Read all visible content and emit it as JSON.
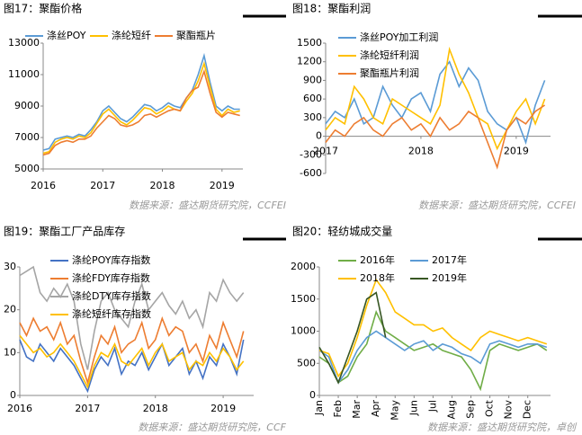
{
  "chart_data": [
    {
      "type": "line",
      "title": "图17：聚酯价格",
      "source": "数据来源：盛达期货研究院，CCFEI",
      "x": [
        2016.0,
        2016.1,
        2016.2,
        2016.3,
        2016.4,
        2016.5,
        2016.6,
        2016.7,
        2016.8,
        2016.9,
        2017.0,
        2017.1,
        2017.2,
        2017.3,
        2017.4,
        2017.5,
        2017.6,
        2017.7,
        2017.8,
        2017.9,
        2018.0,
        2018.1,
        2018.2,
        2018.3,
        2018.4,
        2018.5,
        2018.6,
        2018.7,
        2018.8,
        2018.9,
        2019.0,
        2019.1,
        2019.2,
        2019.3
      ],
      "xlim": [
        2016,
        2019.35
      ],
      "xticks": [
        2016,
        2017,
        2018,
        2019
      ],
      "ylim": [
        5000,
        13000
      ],
      "yticks": [
        5000,
        7000,
        9000,
        11000,
        13000
      ],
      "series": [
        {
          "name": "涤丝POY",
          "color": "#5b9bd5",
          "values": [
            6200,
            6300,
            6900,
            7000,
            7100,
            7000,
            7200,
            7100,
            7500,
            8000,
            8700,
            9000,
            8600,
            8200,
            8000,
            8300,
            8700,
            9100,
            9000,
            8700,
            8900,
            9200,
            9000,
            8900,
            9500,
            10000,
            11000,
            12200,
            10500,
            9000,
            8700,
            9000,
            8800,
            8800
          ]
        },
        {
          "name": "涤纶短纤",
          "color": "#ffc000",
          "values": [
            6000,
            6100,
            6700,
            6900,
            7000,
            6900,
            7100,
            7000,
            7300,
            7900,
            8500,
            8800,
            8400,
            8000,
            7800,
            8100,
            8500,
            8900,
            8800,
            8500,
            8700,
            9000,
            8800,
            8700,
            9300,
            9800,
            10600,
            11700,
            10200,
            8800,
            8400,
            8800,
            8600,
            8700
          ]
        },
        {
          "name": "聚酯瓶片",
          "color": "#ed7d31",
          "values": [
            5900,
            6000,
            6500,
            6700,
            6800,
            6700,
            6900,
            6900,
            7100,
            7600,
            8000,
            8400,
            8200,
            7800,
            7700,
            7800,
            8000,
            8400,
            8500,
            8300,
            8500,
            8700,
            8800,
            8700,
            9500,
            10000,
            10200,
            11200,
            9800,
            8600,
            8300,
            8600,
            8500,
            8400
          ]
        }
      ]
    },
    {
      "type": "line",
      "title": "图18：聚酯利润",
      "source": "数据来源：盛达期货研究院，CCFEI",
      "x": [
        2017.0,
        2017.1,
        2017.2,
        2017.3,
        2017.4,
        2017.5,
        2017.6,
        2017.7,
        2017.8,
        2017.9,
        2018.0,
        2018.1,
        2018.2,
        2018.3,
        2018.4,
        2018.5,
        2018.6,
        2018.7,
        2018.8,
        2018.9,
        2019.0,
        2019.1,
        2019.2,
        2019.3
      ],
      "xlim": [
        2017,
        2019.36
      ],
      "xticks": [
        2017,
        2018,
        2019
      ],
      "ylim": [
        -600,
        1500
      ],
      "yticks": [
        -600,
        -300,
        0,
        300,
        600,
        900,
        1200,
        1500
      ],
      "series": [
        {
          "name": "涤丝POY加工利润",
          "color": "#5b9bd5",
          "values": [
            200,
            400,
            300,
            600,
            200,
            300,
            800,
            500,
            300,
            600,
            700,
            400,
            1000,
            1200,
            800,
            1100,
            900,
            400,
            200,
            100,
            300,
            -100,
            500,
            900
          ]
        },
        {
          "name": "涤纶短纤利润",
          "color": "#ffc000",
          "values": [
            100,
            300,
            200,
            800,
            600,
            300,
            200,
            600,
            500,
            400,
            300,
            200,
            500,
            1400,
            1000,
            700,
            300,
            200,
            -200,
            100,
            400,
            600,
            200,
            600
          ]
        },
        {
          "name": "聚酯瓶片利润",
          "color": "#ed7d31",
          "values": [
            -100,
            100,
            0,
            200,
            300,
            100,
            0,
            200,
            300,
            100,
            200,
            0,
            300,
            100,
            200,
            400,
            300,
            -100,
            -500,
            100,
            300,
            200,
            400,
            500
          ]
        }
      ]
    },
    {
      "type": "line",
      "title": "图19：聚酯工厂产品库存",
      "source": "数据来源：盛达期货研究院，CCF",
      "x": [
        2016.0,
        2016.1,
        2016.2,
        2016.3,
        2016.4,
        2016.5,
        2016.6,
        2016.7,
        2016.8,
        2016.9,
        2017.0,
        2017.1,
        2017.2,
        2017.3,
        2017.4,
        2017.5,
        2017.6,
        2017.7,
        2017.8,
        2017.9,
        2018.0,
        2018.1,
        2018.2,
        2018.3,
        2018.4,
        2018.5,
        2018.6,
        2018.7,
        2018.8,
        2018.9,
        2019.0,
        2019.1,
        2019.2,
        2019.3
      ],
      "xlim": [
        2016,
        2019.45
      ],
      "xticks": [
        2016,
        2017,
        2018,
        2019
      ],
      "ylim": [
        0,
        30
      ],
      "yticks": [
        0,
        10,
        20,
        30
      ],
      "series": [
        {
          "name": "涤纶POY库存指数",
          "color": "#4472c4",
          "values": [
            13,
            9,
            8,
            12,
            10,
            8,
            11,
            9,
            7,
            4,
            1,
            6,
            9,
            7,
            11,
            5,
            8,
            7,
            10,
            6,
            9,
            12,
            7,
            9,
            11,
            5,
            8,
            4,
            9,
            7,
            12,
            9,
            5,
            13
          ]
        },
        {
          "name": "涤纶FDY库存指数",
          "color": "#ed7d31",
          "values": [
            17,
            14,
            18,
            15,
            16,
            13,
            17,
            12,
            14,
            8,
            3,
            9,
            14,
            12,
            16,
            10,
            12,
            13,
            17,
            11,
            13,
            18,
            14,
            16,
            15,
            10,
            12,
            8,
            14,
            11,
            17,
            13,
            9,
            15
          ]
        },
        {
          "name": "涤纶DTY库存指数",
          "color": "#a5a5a5",
          "values": [
            28,
            29,
            30,
            24,
            22,
            25,
            23,
            26,
            22,
            12,
            6,
            15,
            22,
            24,
            20,
            18,
            16,
            22,
            26,
            20,
            22,
            24,
            21,
            19,
            22,
            18,
            20,
            16,
            24,
            22,
            27,
            24,
            22,
            24
          ]
        },
        {
          "name": "涤纶短纤库存指数",
          "color": "#ffc000",
          "values": [
            14,
            12,
            10,
            11,
            9,
            10,
            12,
            10,
            8,
            5,
            2,
            7,
            10,
            9,
            12,
            8,
            7,
            9,
            11,
            7,
            10,
            12,
            8,
            9,
            10,
            6,
            8,
            7,
            10,
            8,
            11,
            9,
            6,
            8
          ]
        }
      ]
    },
    {
      "type": "line",
      "title": "图20：轻纺城成交量",
      "source": "数据来源：盛达期货研究院，卓创",
      "x": [
        0,
        0.5,
        1,
        1.5,
        2,
        2.5,
        3,
        3.5,
        4,
        4.5,
        5,
        5.5,
        6,
        6.5,
        7,
        7.5,
        8,
        8.5,
        9,
        9.5,
        10,
        10.5,
        11,
        11.5,
        12
      ],
      "xlim": [
        0,
        12.2
      ],
      "xticks": [
        {
          "value": 0,
          "label": "Jan"
        },
        {
          "value": 1,
          "label": "Feb"
        },
        {
          "value": 2,
          "label": "Mar"
        },
        {
          "value": 3,
          "label": "Apr"
        },
        {
          "value": 4,
          "label": "May"
        },
        {
          "value": 5,
          "label": "Jun"
        },
        {
          "value": 6,
          "label": "Jul"
        },
        {
          "value": 7,
          "label": "Aug"
        },
        {
          "value": 8,
          "label": "Sep"
        },
        {
          "value": 9,
          "label": "Oct"
        },
        {
          "value": 10,
          "label": "Nov"
        },
        {
          "value": 11,
          "label": "Dec"
        }
      ],
      "ylim": [
        0,
        2000
      ],
      "yticks": [
        0,
        500,
        1000,
        1500,
        2000
      ],
      "series": [
        {
          "name": "2016年",
          "color": "#70ad47",
          "values": [
            600,
            500,
            200,
            300,
            600,
            800,
            1300,
            1000,
            900,
            800,
            700,
            750,
            800,
            700,
            650,
            600,
            400,
            100,
            700,
            800,
            750,
            700,
            750,
            800,
            700
          ]
        },
        {
          "name": "2017年",
          "color": "#5b9bd5",
          "values": [
            700,
            600,
            200,
            400,
            700,
            900,
            1000,
            900,
            800,
            700,
            800,
            850,
            700,
            800,
            750,
            650,
            600,
            500,
            800,
            850,
            800,
            750,
            800,
            800,
            750
          ]
        },
        {
          "name": "2018年",
          "color": "#ffc000",
          "values": [
            700,
            650,
            300,
            500,
            900,
            1400,
            1800,
            1600,
            1300,
            1200,
            1100,
            1100,
            1000,
            1050,
            900,
            800,
            700,
            900,
            1000,
            950,
            900,
            850,
            900,
            850,
            800
          ]
        },
        {
          "name": "2019年",
          "color": "#375623",
          "values": [
            750,
            500,
            200,
            600,
            1000,
            1500,
            1600,
            900,
            null,
            null,
            null,
            null,
            null,
            null,
            null,
            null,
            null,
            null,
            null,
            null,
            null,
            null,
            null,
            null,
            null
          ]
        }
      ]
    }
  ]
}
